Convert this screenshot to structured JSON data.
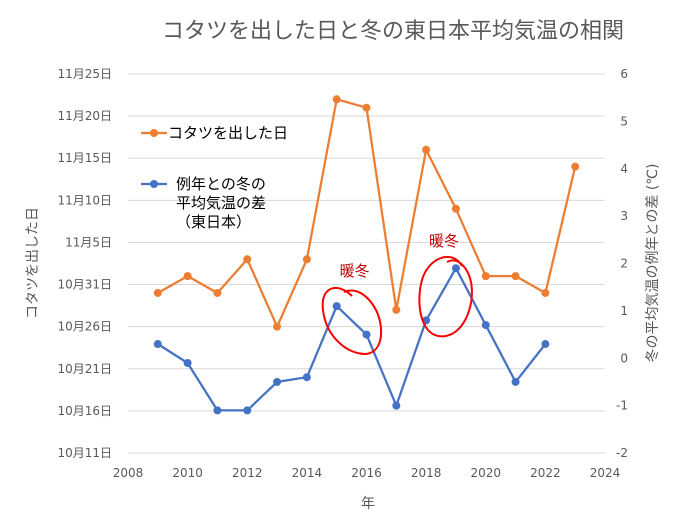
{
  "chart_data": {
    "type": "line",
    "title": "コタツを出した日と冬の東日本平均気温の相関",
    "xlabel": "年",
    "ylabel_left": "コタツを出した日",
    "ylabel_right": "冬の平均気温の例年との差 (℃)",
    "xlim": [
      2008,
      2024
    ],
    "x_ticks": [
      "2008",
      "2010",
      "2012",
      "2014",
      "2016",
      "2018",
      "2020",
      "2022",
      "2024"
    ],
    "left_ticks": [
      "10月11日",
      "10月16日",
      "10月21日",
      "10月26日",
      "10月31日",
      "11月5日",
      "11月10日",
      "11月15日",
      "11月20日",
      "11月25日"
    ],
    "left_lim_days": [
      0,
      45
    ],
    "right_ticks": [
      "-2",
      "-1",
      "0",
      "1",
      "2",
      "3",
      "4",
      "5",
      "6"
    ],
    "right_lim": [
      -2,
      6
    ],
    "series": [
      {
        "name": "コタツを出した日",
        "axis": "left",
        "color": "#ed7d31",
        "x": [
          2009,
          2010,
          2011,
          2012,
          2013,
          2014,
          2015,
          2016,
          2017,
          2018,
          2019,
          2020,
          2021,
          2022,
          2023
        ],
        "y_days_after_oct11": [
          19,
          21,
          19,
          23,
          15,
          23,
          42,
          41,
          17,
          36,
          29,
          21,
          21,
          19,
          34
        ]
      },
      {
        "name": "例年との冬の平均気温の差（東日本）",
        "axis": "right",
        "color": "#4472c4",
        "x": [
          2009,
          2010,
          2011,
          2012,
          2013,
          2014,
          2015,
          2016,
          2017,
          2018,
          2019,
          2020,
          2021,
          2022
        ],
        "values": [
          0.3,
          -0.1,
          -1.1,
          -1.1,
          -0.5,
          -0.4,
          1.1,
          0.5,
          -1.0,
          0.8,
          1.9,
          0.7,
          -0.5,
          0.3
        ]
      }
    ],
    "legend": [
      {
        "lines": [
          "コタツを出した日"
        ]
      },
      {
        "lines": [
          "例年との冬の",
          "平均気温の差",
          "（東日本）"
        ]
      }
    ],
    "annotations": [
      {
        "text": "暖冬",
        "year": 2015.6
      },
      {
        "text": "暖冬",
        "year": 2018.6
      }
    ]
  }
}
